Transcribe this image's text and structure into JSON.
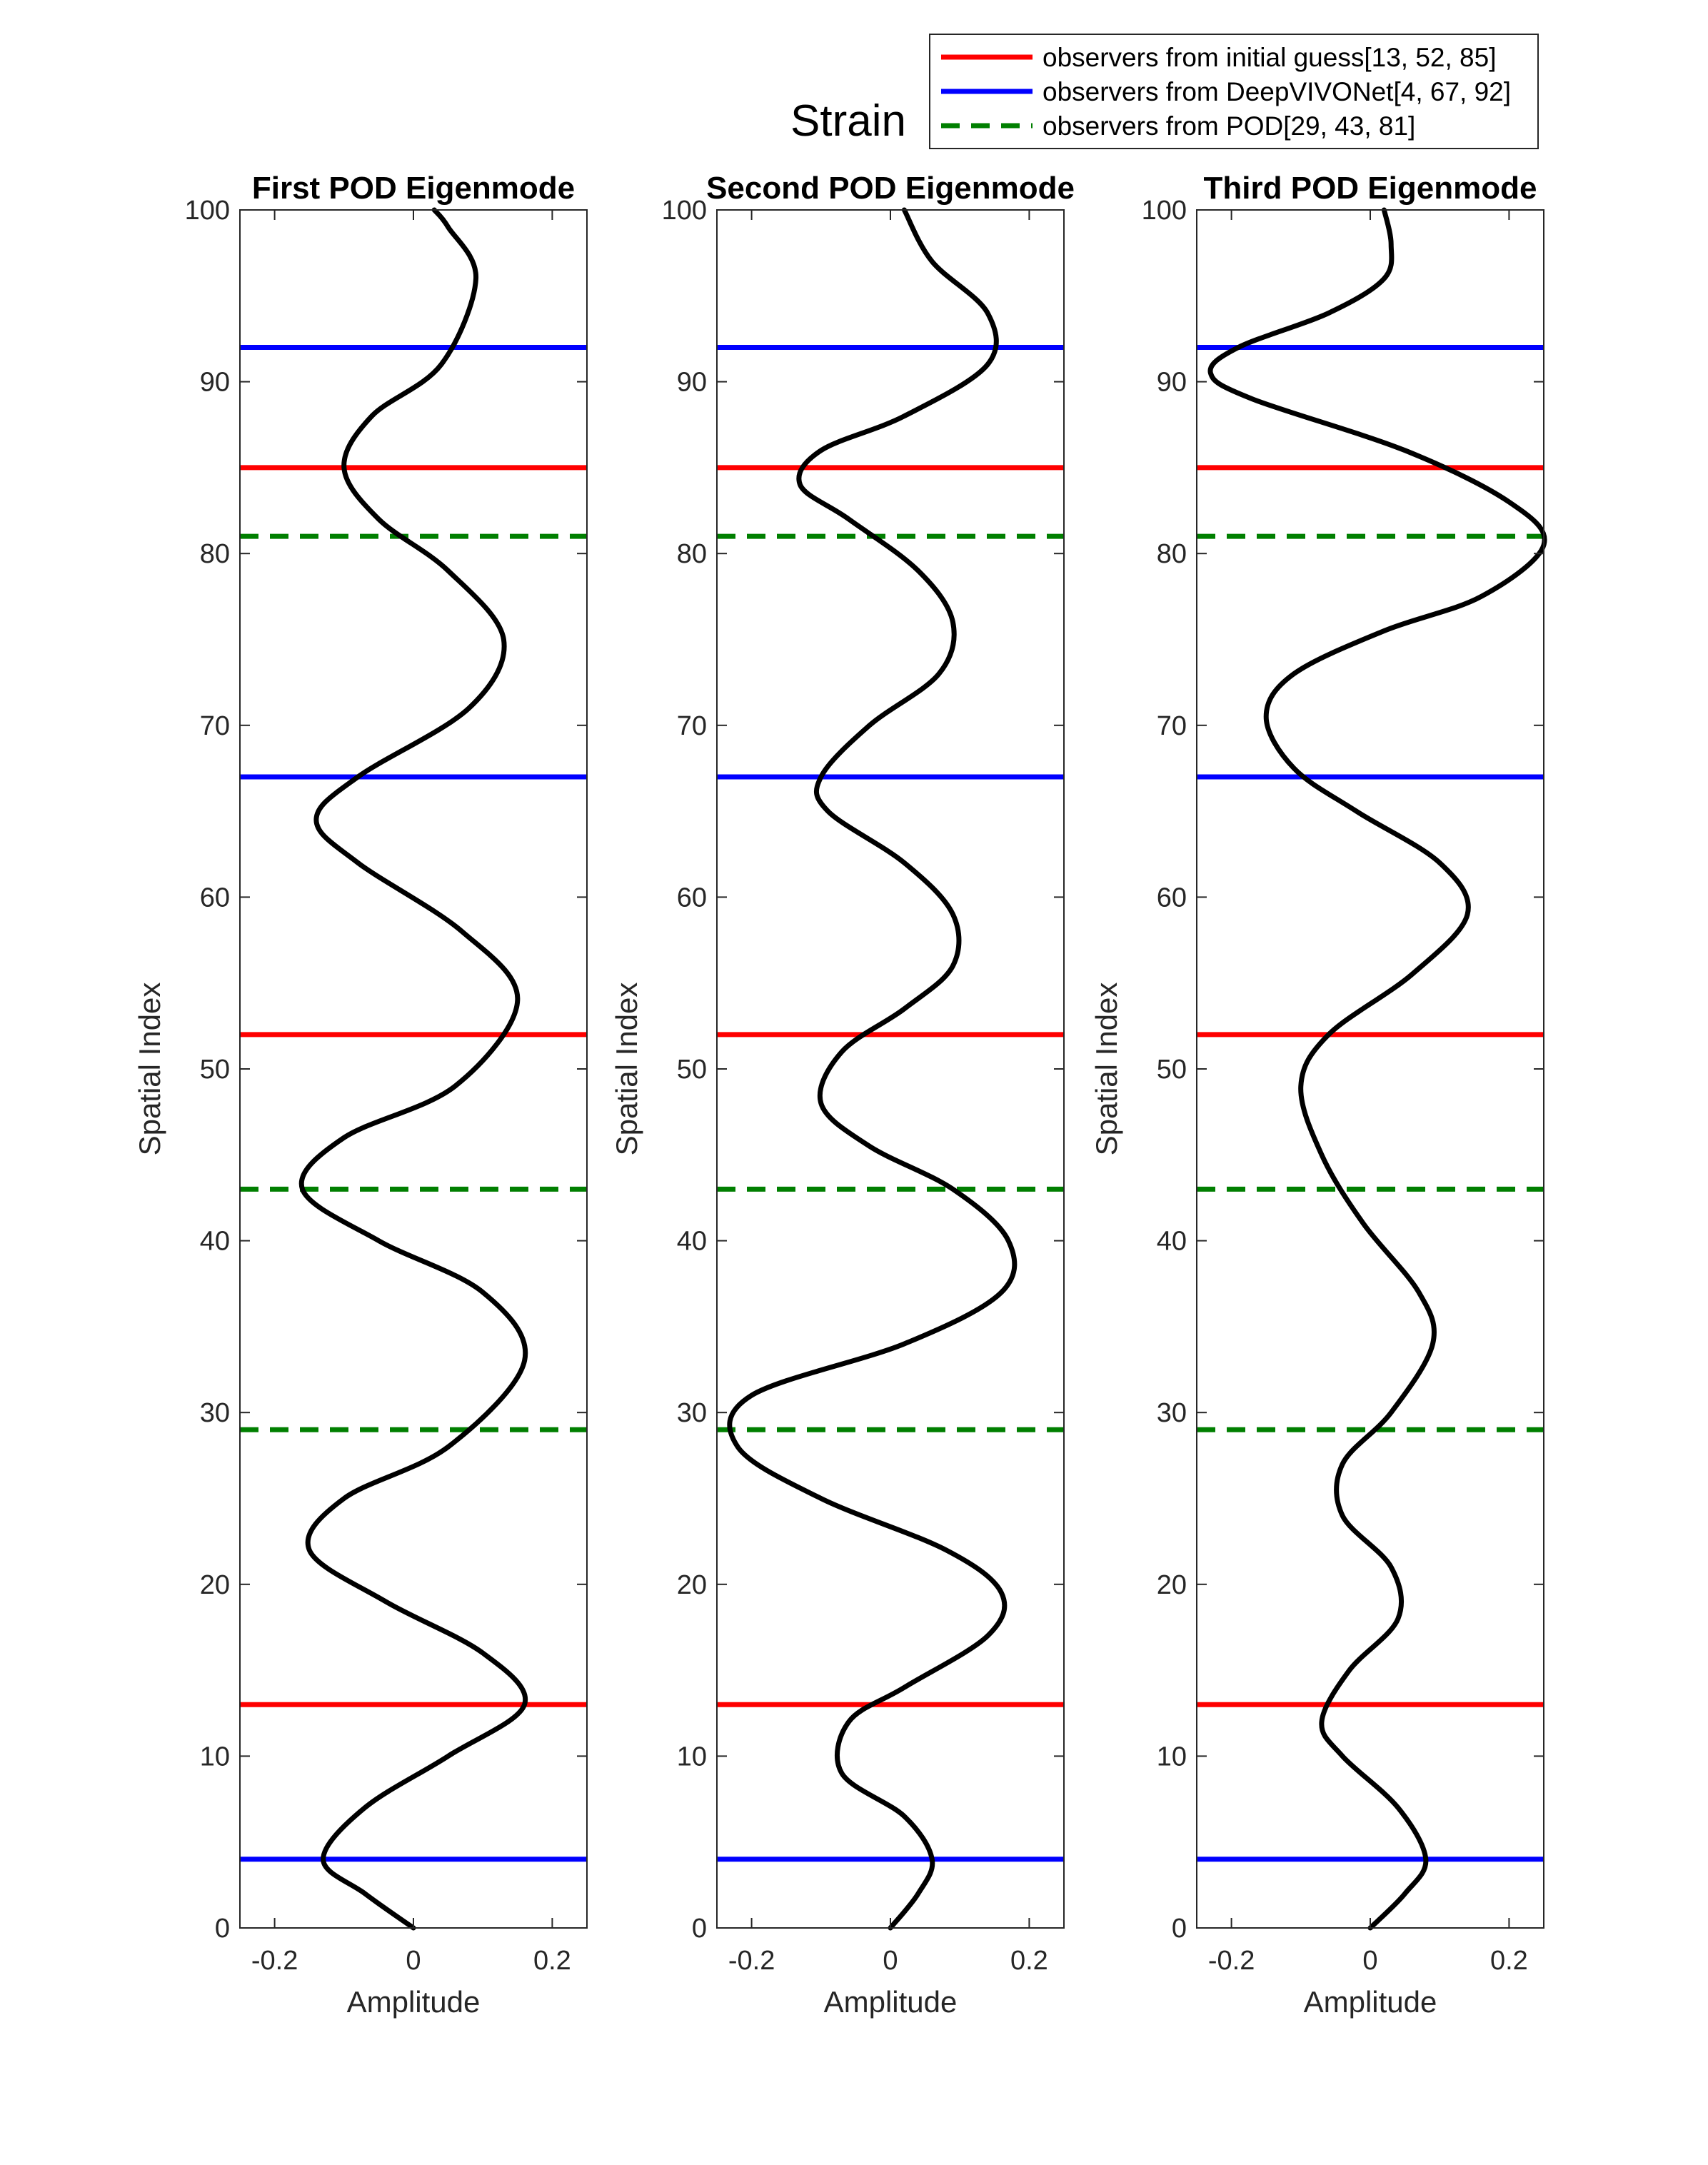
{
  "figure_title": "Strain",
  "legend": [
    {
      "label": "observers from initial guess[13, 52, 85]",
      "color": "#ff0000",
      "style": "solid"
    },
    {
      "label": "observers from DeepVIVONet[4, 67, 92]",
      "color": "#0000ff",
      "style": "solid"
    },
    {
      "label": "observers from POD[29, 43, 81]",
      "color": "#007f00",
      "style": "dashed"
    }
  ],
  "chart_data": [
    {
      "type": "line",
      "title": "First POD Eigenmode",
      "xlabel": "Amplitude",
      "ylabel": "Spatial Index",
      "xlim": [
        -0.25,
        0.25
      ],
      "ylim": [
        0,
        100
      ],
      "xticks": [
        "-0.2",
        "0",
        "0.2"
      ],
      "yticks": [
        "0",
        "10",
        "20",
        "30",
        "40",
        "50",
        "60",
        "70",
        "80",
        "90",
        "100"
      ],
      "grid": false,
      "legend_position": "top-right",
      "observers": {
        "initial_guess": [
          13,
          52,
          85
        ],
        "deepvivonet": [
          4,
          67,
          92
        ],
        "pod": [
          29,
          43,
          81
        ]
      },
      "series": [
        {
          "color": "#000000",
          "points": [
            [
              0.0,
              0
            ],
            [
              -0.07,
              2
            ],
            [
              -0.13,
              4
            ],
            [
              -0.07,
              7
            ],
            [
              0.05,
              10
            ],
            [
              0.16,
              13
            ],
            [
              0.1,
              16
            ],
            [
              -0.04,
              19
            ],
            [
              -0.15,
              22
            ],
            [
              -0.1,
              25
            ],
            [
              0.05,
              28
            ],
            [
              0.16,
              33
            ],
            [
              0.1,
              37
            ],
            [
              -0.05,
              40
            ],
            [
              -0.16,
              43
            ],
            [
              -0.1,
              46
            ],
            [
              0.06,
              49
            ],
            [
              0.15,
              54
            ],
            [
              0.07,
              58
            ],
            [
              -0.08,
              62
            ],
            [
              -0.14,
              64.5
            ],
            [
              -0.08,
              67
            ],
            [
              0.08,
              71
            ],
            [
              0.13,
              75
            ],
            [
              0.05,
              79
            ],
            [
              -0.05,
              82
            ],
            [
              -0.1,
              85
            ],
            [
              -0.06,
              88
            ],
            [
              0.04,
              91
            ],
            [
              0.09,
              96
            ],
            [
              0.05,
              99
            ],
            [
              0.03,
              100
            ]
          ]
        }
      ]
    },
    {
      "type": "line",
      "title": "Second POD Eigenmode",
      "xlabel": "Amplitude",
      "ylabel": "Spatial Index",
      "xlim": [
        -0.25,
        0.25
      ],
      "ylim": [
        0,
        100
      ],
      "xticks": [
        "-0.2",
        "0",
        "0.2"
      ],
      "yticks": [
        "0",
        "10",
        "20",
        "30",
        "40",
        "50",
        "60",
        "70",
        "80",
        "90",
        "100"
      ],
      "grid": false,
      "legend_position": "top-right",
      "observers": {
        "initial_guess": [
          13,
          52,
          85
        ],
        "deepvivonet": [
          4,
          67,
          92
        ],
        "pod": [
          29,
          43,
          81
        ]
      },
      "series": [
        {
          "color": "#000000",
          "points": [
            [
              0.0,
              0
            ],
            [
              0.04,
              2
            ],
            [
              0.06,
              4
            ],
            [
              0.02,
              6.5
            ],
            [
              -0.07,
              9
            ],
            [
              -0.06,
              12
            ],
            [
              0.02,
              14
            ],
            [
              0.14,
              17
            ],
            [
              0.16,
              19.5
            ],
            [
              0.08,
              22
            ],
            [
              -0.1,
              25
            ],
            [
              -0.22,
              28
            ],
            [
              -0.2,
              31
            ],
            [
              0.02,
              34
            ],
            [
              0.16,
              37
            ],
            [
              0.17,
              40
            ],
            [
              0.09,
              43
            ],
            [
              -0.03,
              45.5
            ],
            [
              -0.1,
              48
            ],
            [
              -0.07,
              51
            ],
            [
              0.02,
              53.5
            ],
            [
              0.09,
              56
            ],
            [
              0.09,
              59
            ],
            [
              0.02,
              62
            ],
            [
              -0.09,
              65
            ],
            [
              -0.1,
              67
            ],
            [
              -0.03,
              70
            ],
            [
              0.07,
              73
            ],
            [
              0.09,
              76
            ],
            [
              0.04,
              79
            ],
            [
              -0.06,
              82
            ],
            [
              -0.13,
              84
            ],
            [
              -0.1,
              86
            ],
            [
              0.02,
              88
            ],
            [
              0.14,
              91
            ],
            [
              0.14,
              94
            ],
            [
              0.06,
              97
            ],
            [
              0.02,
              100
            ]
          ]
        }
      ]
    },
    {
      "type": "line",
      "title": "Third POD Eigenmode",
      "xlabel": "Amplitude",
      "ylabel": "Spatial Index",
      "xlim": [
        -0.25,
        0.25
      ],
      "ylim": [
        0,
        100
      ],
      "xticks": [
        "-0.2",
        "0",
        "0.2"
      ],
      "yticks": [
        "0",
        "10",
        "20",
        "30",
        "40",
        "50",
        "60",
        "70",
        "80",
        "90",
        "100"
      ],
      "grid": false,
      "legend_position": "top-right",
      "observers": {
        "initial_guess": [
          13,
          52,
          85
        ],
        "deepvivonet": [
          4,
          67,
          92
        ],
        "pod": [
          29,
          43,
          81
        ]
      },
      "series": [
        {
          "color": "#000000",
          "points": [
            [
              0.0,
              0
            ],
            [
              0.05,
              2
            ],
            [
              0.08,
              4
            ],
            [
              0.04,
              7
            ],
            [
              -0.04,
              10
            ],
            [
              -0.07,
              12
            ],
            [
              -0.03,
              15
            ],
            [
              0.04,
              18
            ],
            [
              0.03,
              21
            ],
            [
              -0.04,
              24
            ],
            [
              -0.04,
              27
            ],
            [
              0.03,
              30
            ],
            [
              0.09,
              34
            ],
            [
              0.07,
              37
            ],
            [
              -0.01,
              41
            ],
            [
              -0.07,
              45
            ],
            [
              -0.1,
              49
            ],
            [
              -0.06,
              52
            ],
            [
              0.06,
              55.5
            ],
            [
              0.14,
              59
            ],
            [
              0.1,
              62
            ],
            [
              -0.02,
              65
            ],
            [
              -0.11,
              67.5
            ],
            [
              -0.15,
              70.5
            ],
            [
              -0.11,
              73
            ],
            [
              0.02,
              75.5
            ],
            [
              0.16,
              77.5
            ],
            [
              0.25,
              80.5
            ],
            [
              0.2,
              83
            ],
            [
              0.05,
              86
            ],
            [
              -0.17,
              89
            ],
            [
              -0.23,
              90.5
            ],
            [
              -0.19,
              92
            ],
            [
              -0.06,
              94
            ],
            [
              0.02,
              96
            ],
            [
              0.03,
              98
            ],
            [
              0.02,
              100
            ]
          ]
        }
      ]
    }
  ]
}
